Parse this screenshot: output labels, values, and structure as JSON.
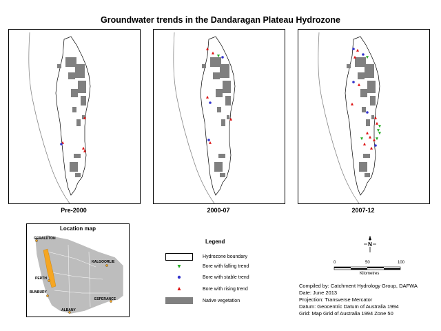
{
  "title": "Groundwater trends in the Dandaragan Plateau Hydrozone",
  "panels": [
    {
      "label": "Pre-2000"
    },
    {
      "label": "2000-07"
    },
    {
      "label": "2007-12"
    }
  ],
  "location_map": {
    "title": "Location map",
    "towns": [
      "GERALDTON",
      "KALGOORLIE",
      "PERTH",
      "BUNBURY",
      "ESPERANCE",
      "ALBANY"
    ]
  },
  "legend": {
    "title": "Legend",
    "items": [
      {
        "label": "Hydrozone boundary"
      },
      {
        "label": "Bore with falling trend"
      },
      {
        "label": "Bore with stable trend"
      },
      {
        "label": "Bore with rising trend"
      },
      {
        "label": "Native vegetation"
      }
    ]
  },
  "north_arrow": "N",
  "scale": {
    "ticks": [
      "0",
      "50",
      "100"
    ],
    "unit": "Kilometres"
  },
  "colors": {
    "falling": "#22aa22",
    "stable": "#3333cc",
    "rising": "#dd1111",
    "vegetation": "#808080",
    "hydrozone_loc": "#f5a623"
  },
  "credits": [
    "Compiled by:  Catchment Hydrology Group, DAFWA",
    "Date:  June 2013",
    "Projection:  Transverse Mercator",
    "Datum:  Geocentric Datum of Australia 1994",
    "Grid:  Map Grid of Australia 1994 Zone 50"
  ]
}
